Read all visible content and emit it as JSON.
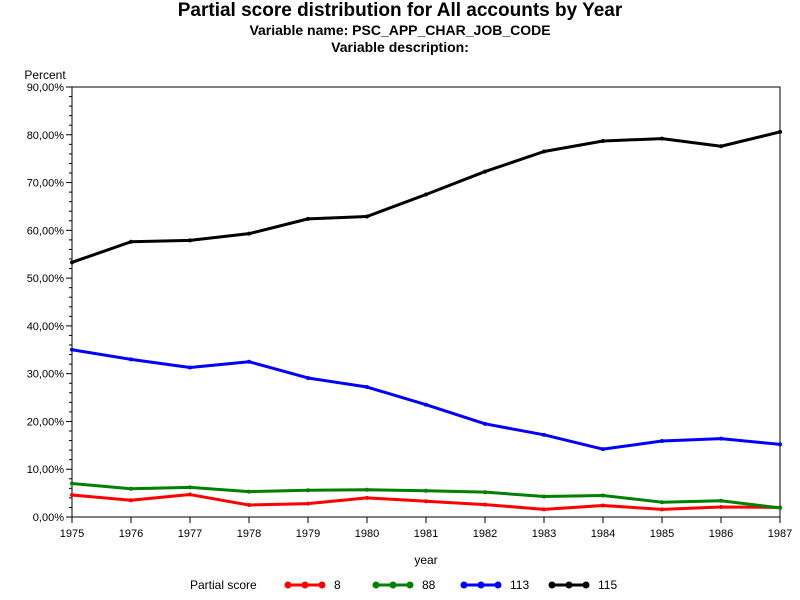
{
  "header": {
    "title": "Partial score distribution for All accounts by Year",
    "variable_name": "Variable name: PSC_APP_CHAR_JOB_CODE",
    "variable_description": "Variable description:"
  },
  "chart_data": {
    "type": "line",
    "xlabel": "year",
    "ylabel": "Percent",
    "x": [
      1975,
      1976,
      1977,
      1978,
      1979,
      1980,
      1981,
      1982,
      1983,
      1984,
      1985,
      1986,
      1987
    ],
    "xlim": [
      1975,
      1987
    ],
    "ylim": [
      0,
      90
    ],
    "yticks": [
      0,
      10,
      20,
      30,
      40,
      50,
      60,
      70,
      80,
      90
    ],
    "ytick_labels": [
      "0,00%",
      "10,00%",
      "20,00%",
      "30,00%",
      "40,00%",
      "50,00%",
      "60,00%",
      "70,00%",
      "80,00%",
      "90,00%"
    ],
    "legend_title": "Partial score",
    "legend_position": "bottom",
    "grid": false,
    "series": [
      {
        "name": "8",
        "color": "#ff0000",
        "values": [
          4.6,
          3.5,
          4.7,
          2.5,
          2.8,
          4.0,
          3.3,
          2.6,
          1.6,
          2.4,
          1.6,
          2.1,
          2.0
        ]
      },
      {
        "name": "88",
        "color": "#008000",
        "values": [
          7.0,
          5.9,
          6.2,
          5.3,
          5.6,
          5.7,
          5.5,
          5.2,
          4.3,
          4.5,
          3.1,
          3.4,
          1.9
        ]
      },
      {
        "name": "113",
        "color": "#0000ff",
        "values": [
          35.0,
          33.0,
          31.3,
          32.5,
          29.1,
          27.2,
          23.5,
          19.5,
          17.2,
          14.2,
          15.9,
          16.4,
          15.2
        ]
      },
      {
        "name": "115",
        "color": "#000000",
        "values": [
          53.3,
          57.6,
          57.9,
          59.3,
          62.4,
          62.9,
          67.5,
          72.3,
          76.5,
          78.7,
          79.2,
          77.6,
          80.6
        ]
      }
    ]
  }
}
